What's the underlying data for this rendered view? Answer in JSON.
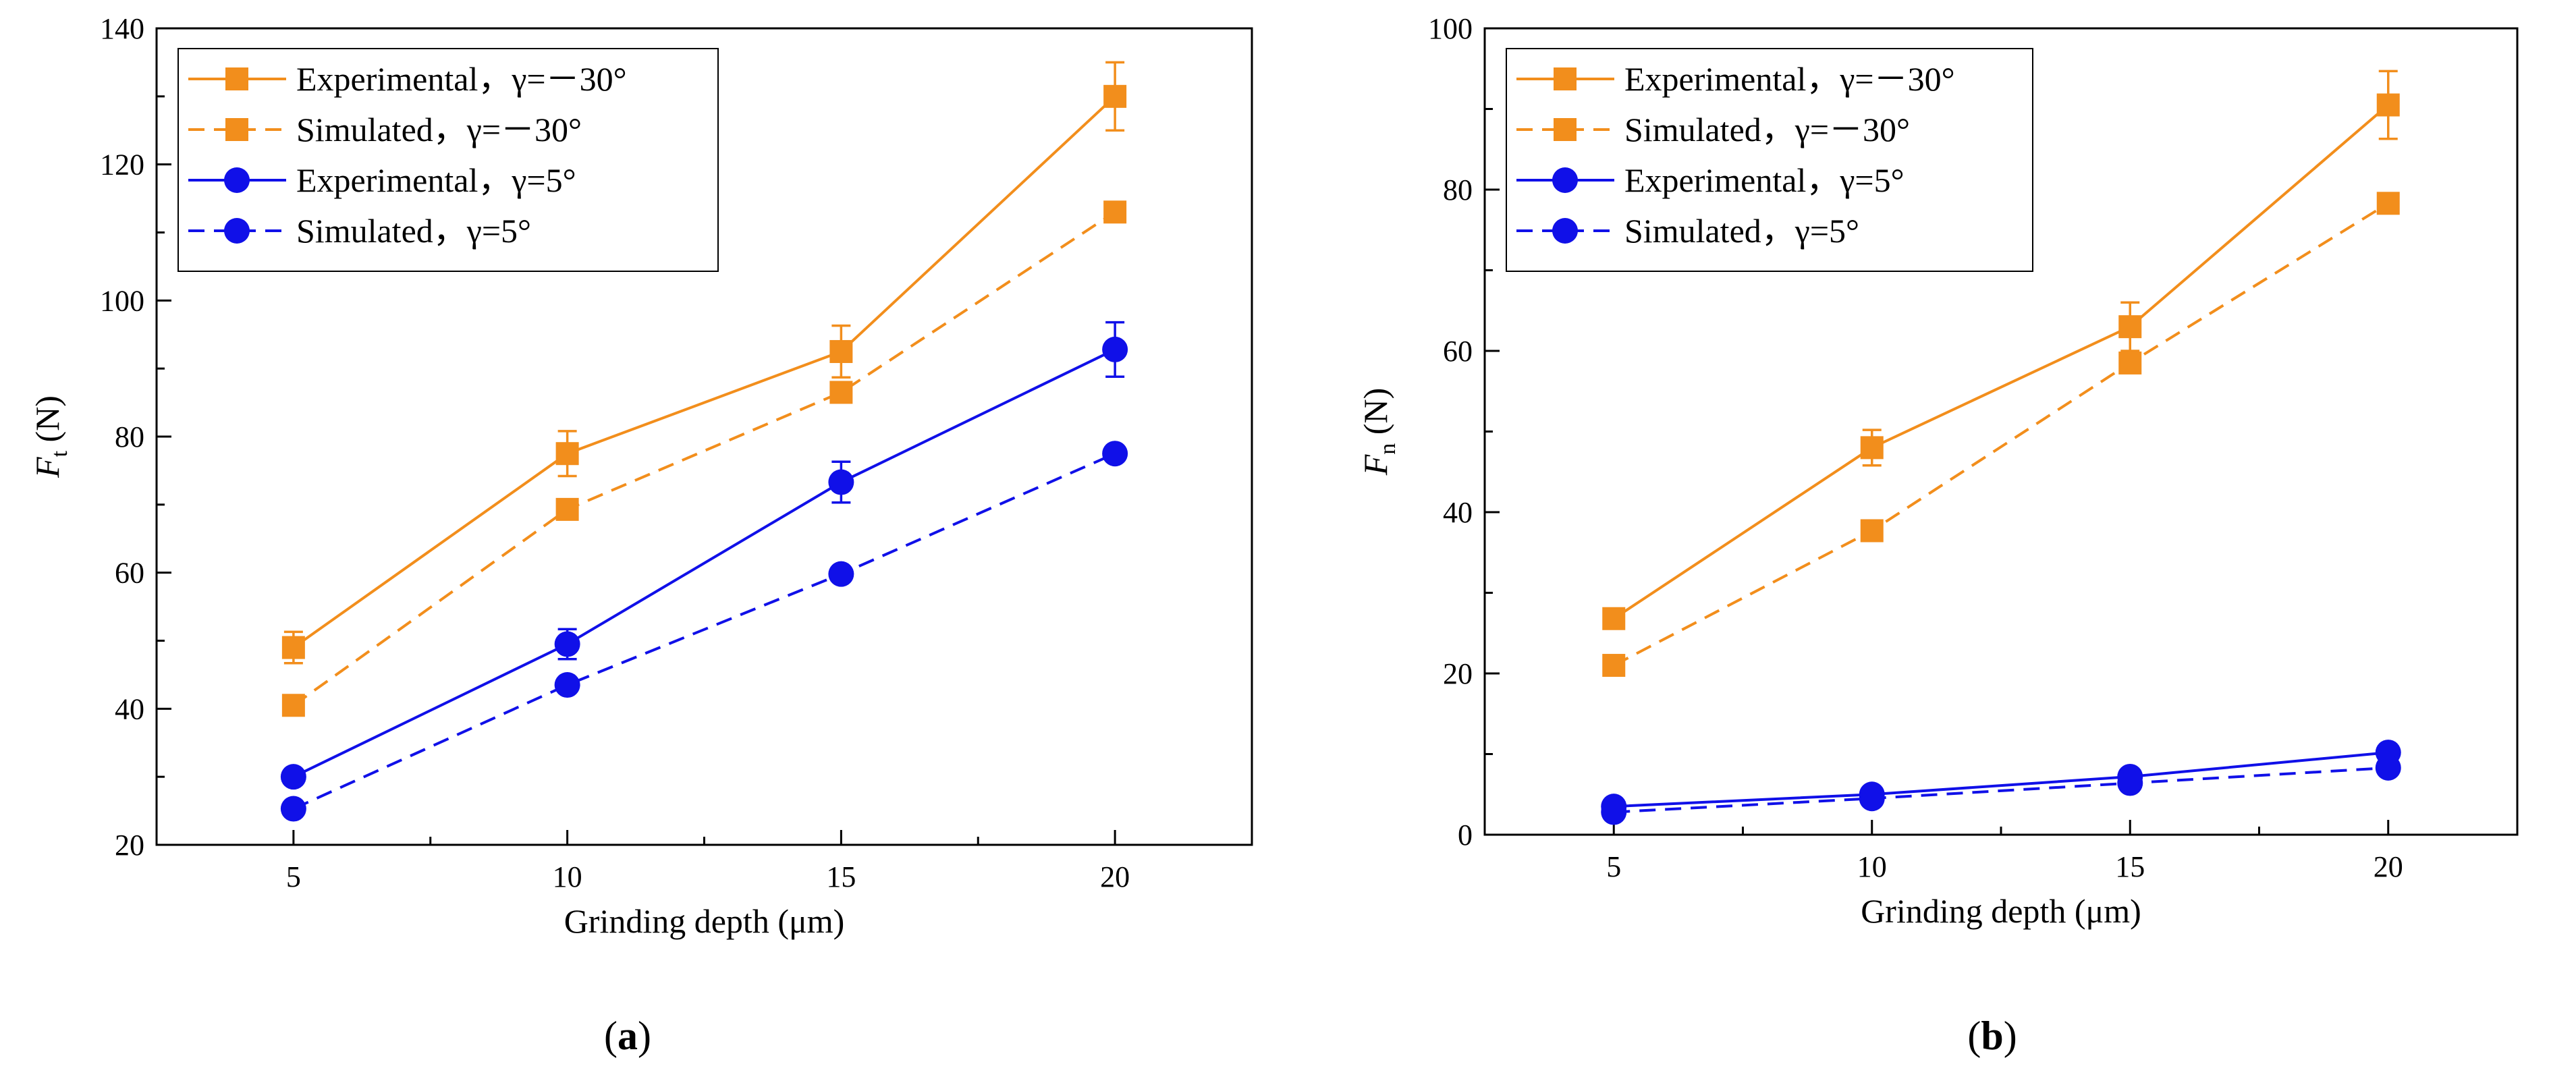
{
  "chart_data": [
    {
      "type": "line",
      "panel_label": "a",
      "xlabel": "Grinding depth (μm)",
      "ylabel_main": "F",
      "ylabel_sub": "t",
      "ylabel_unit": " (N)",
      "xlim": [
        2.5,
        22.5
      ],
      "ylim": [
        20,
        140
      ],
      "x_ticks": [
        5,
        10,
        15,
        20
      ],
      "x_minor_ticks": [
        7.5,
        12.5,
        17.5
      ],
      "y_ticks": [
        20,
        40,
        60,
        80,
        100,
        120,
        140
      ],
      "y_minor_ticks": [
        30,
        50,
        70,
        90,
        110,
        130
      ],
      "x": [
        5,
        10,
        15,
        20
      ],
      "legend_position": "top-left",
      "series": [
        {
          "name": "Experimental，γ=－30°",
          "color": "#F28E1C",
          "dash": "solid",
          "marker": "square",
          "values": [
            49,
            77.5,
            92.5,
            130
          ],
          "errors": [
            2.3,
            3.3,
            3.8,
            5
          ]
        },
        {
          "name": "Simulated，γ=－30°",
          "color": "#F28E1C",
          "dash": "dashed",
          "marker": "square",
          "values": [
            40.5,
            69.3,
            86.5,
            113
          ]
        },
        {
          "name": "Experimental，γ=5°",
          "color": "#1010E8",
          "dash": "solid",
          "marker": "circle",
          "values": [
            30,
            49.5,
            73.3,
            92.8
          ],
          "errors": [
            0.6,
            2.2,
            3,
            4
          ]
        },
        {
          "name": "Simulated，γ=5°",
          "color": "#1010E8",
          "dash": "dashed",
          "marker": "circle",
          "values": [
            25.3,
            43.5,
            59.8,
            77.5
          ]
        }
      ]
    },
    {
      "type": "line",
      "panel_label": "b",
      "xlabel": "Grinding depth (μm)",
      "ylabel_main": "F",
      "ylabel_sub": "n",
      "ylabel_unit": " (N)",
      "xlim": [
        2.5,
        22.5
      ],
      "ylim": [
        0,
        100
      ],
      "x_ticks": [
        5,
        10,
        15,
        20
      ],
      "x_minor_ticks": [
        7.5,
        12.5,
        17.5
      ],
      "y_ticks": [
        0,
        20,
        40,
        60,
        80,
        100
      ],
      "y_minor_ticks": [
        10,
        30,
        50,
        70,
        90
      ],
      "x": [
        5,
        10,
        15,
        20
      ],
      "legend_position": "top-left",
      "series": [
        {
          "name": "Experimental，γ=－30°",
          "color": "#F28E1C",
          "dash": "solid",
          "marker": "square",
          "values": [
            26.8,
            48,
            63,
            90.5
          ],
          "errors": [
            0.6,
            2.2,
            3,
            4.2
          ]
        },
        {
          "name": "Simulated，γ=－30°",
          "color": "#F28E1C",
          "dash": "dashed",
          "marker": "square",
          "values": [
            21,
            37.7,
            58.5,
            78.3
          ]
        },
        {
          "name": "Experimental，γ=5°",
          "color": "#1010E8",
          "dash": "solid",
          "marker": "circle",
          "values": [
            3.5,
            5,
            7.2,
            10.2
          ],
          "errors": [
            0.3,
            0.4,
            0.5,
            0.6
          ]
        },
        {
          "name": "Simulated，γ=5°",
          "color": "#1010E8",
          "dash": "dashed",
          "marker": "circle",
          "values": [
            2.8,
            4.5,
            6.4,
            8.3
          ]
        }
      ]
    }
  ]
}
